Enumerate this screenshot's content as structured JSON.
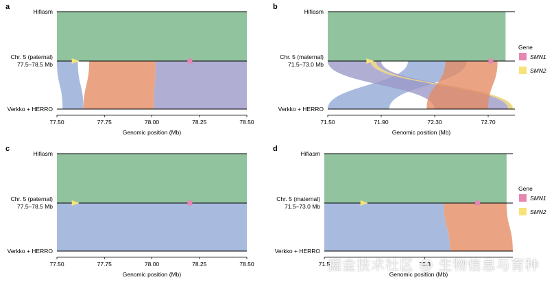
{
  "colors": {
    "hifiasm": "#92c39f",
    "blue": "#8fa8d6",
    "orange": "#e48a62",
    "purple": "#9b97c8",
    "smn1": "#e687b3",
    "smn2": "#f8e27a"
  },
  "legend": {
    "title": "Gene",
    "items": [
      "SMN1",
      "SMN2"
    ]
  },
  "watermark": "掘金技术社区 @ 生物信息与育种",
  "chart_data": [
    {
      "id": "a",
      "type": "area",
      "panel_label": "a",
      "top_track": "Hifiasm",
      "mid_label": [
        "Chr. 5 (paternal)",
        "77.5–78.5 Mb"
      ],
      "bottom_track": "Verkko + HERRO",
      "xlabel": "Genomic position (Mb)",
      "xlim": [
        77.5,
        78.5
      ],
      "ticks": [
        77.5,
        77.75,
        78.0,
        78.25,
        78.5
      ],
      "tick_labels": [
        "77.50",
        "77.75",
        "78.00",
        "78.25",
        "78.50"
      ],
      "top_span": [
        77.5,
        78.5
      ],
      "genes": [
        {
          "name": "SMN2",
          "pos": 77.6
        },
        {
          "name": "SMN1",
          "pos": 78.2
        }
      ],
      "alignments": [
        {
          "color": "blue",
          "top": [
            77.5,
            77.61
          ],
          "bottom": [
            77.53,
            77.64
          ]
        },
        {
          "color": "orange",
          "top": [
            77.67,
            78.02
          ],
          "bottom": [
            77.64,
            78.01
          ]
        },
        {
          "color": "purple",
          "top": [
            78.02,
            78.5
          ],
          "bottom": [
            78.01,
            78.5
          ]
        }
      ]
    },
    {
      "id": "b",
      "type": "area",
      "panel_label": "b",
      "top_track": "Hifiasm",
      "mid_label": [
        "Chr. 5 (maternal)",
        "71.5–73.0 Mb"
      ],
      "bottom_track": "Verkko + HERRO",
      "xlabel": "Genomic position (Mb)",
      "xlim": [
        71.5,
        72.9
      ],
      "ticks": [
        71.5,
        71.9,
        72.3,
        72.7
      ],
      "tick_labels": [
        "71.50",
        "71.90",
        "72.30",
        "72.70"
      ],
      "top_span": [
        71.5,
        72.83
      ],
      "genes": [
        {
          "name": "SMN2",
          "pos": 71.82
        },
        {
          "name": "SMN1",
          "pos": 72.72
        }
      ],
      "alignments": [
        {
          "color": "blue",
          "top": [
            72.1,
            72.54
          ],
          "bottom": [
            71.5,
            71.96
          ]
        },
        {
          "color": "purple",
          "top": [
            71.5,
            71.9
          ],
          "bottom": [
            72.3,
            72.88
          ]
        },
        {
          "color": "smn2",
          "top": [
            71.82,
            71.86
          ],
          "bottom": [
            72.85,
            72.89
          ]
        },
        {
          "color": "orange",
          "top": [
            72.38,
            72.77
          ],
          "bottom": [
            72.24,
            72.7
          ]
        }
      ]
    },
    {
      "id": "c",
      "type": "area",
      "panel_label": "c",
      "top_track": "Hifiasm",
      "mid_label": [
        "Chr. 5 (paternal)",
        "77.5–78.5 Mb"
      ],
      "bottom_track": "Verkko + HERRO",
      "xlabel": "Genomic position (Mb)",
      "xlim": [
        77.5,
        78.5
      ],
      "ticks": [
        77.5,
        77.75,
        78.0,
        78.25,
        78.5
      ],
      "tick_labels": [
        "77.50",
        "77.75",
        "78.00",
        "78.25",
        "78.50"
      ],
      "top_span": [
        77.5,
        78.5
      ],
      "genes": [
        {
          "name": "SMN2",
          "pos": 77.6
        },
        {
          "name": "SMN1",
          "pos": 78.2
        }
      ],
      "alignments": [
        {
          "color": "blue",
          "top": [
            77.5,
            78.5
          ],
          "bottom": [
            77.5,
            78.5
          ]
        }
      ]
    },
    {
      "id": "d",
      "type": "area",
      "panel_label": "d",
      "top_track": "Hifiasm",
      "mid_label": [
        "Chr. 5 (maternal)",
        "71.5–73.0 Mb"
      ],
      "bottom_track": "Verkko + HERRO",
      "xlabel": "Genomic position (Mb)",
      "xlim": [
        71.5,
        73.0
      ],
      "ticks": [
        71.5,
        72.3
      ],
      "tick_labels": [
        "71.5",
        "72.3"
      ],
      "top_span": [
        71.5,
        72.95
      ],
      "genes": [
        {
          "name": "SMN2",
          "pos": 71.82
        },
        {
          "name": "SMN1",
          "pos": 72.72
        }
      ],
      "alignments": [
        {
          "color": "blue",
          "top": [
            71.5,
            72.45
          ],
          "bottom": [
            71.5,
            72.5
          ]
        },
        {
          "color": "orange",
          "top": [
            72.45,
            72.95
          ],
          "bottom": [
            72.5,
            73.0
          ]
        }
      ]
    }
  ]
}
